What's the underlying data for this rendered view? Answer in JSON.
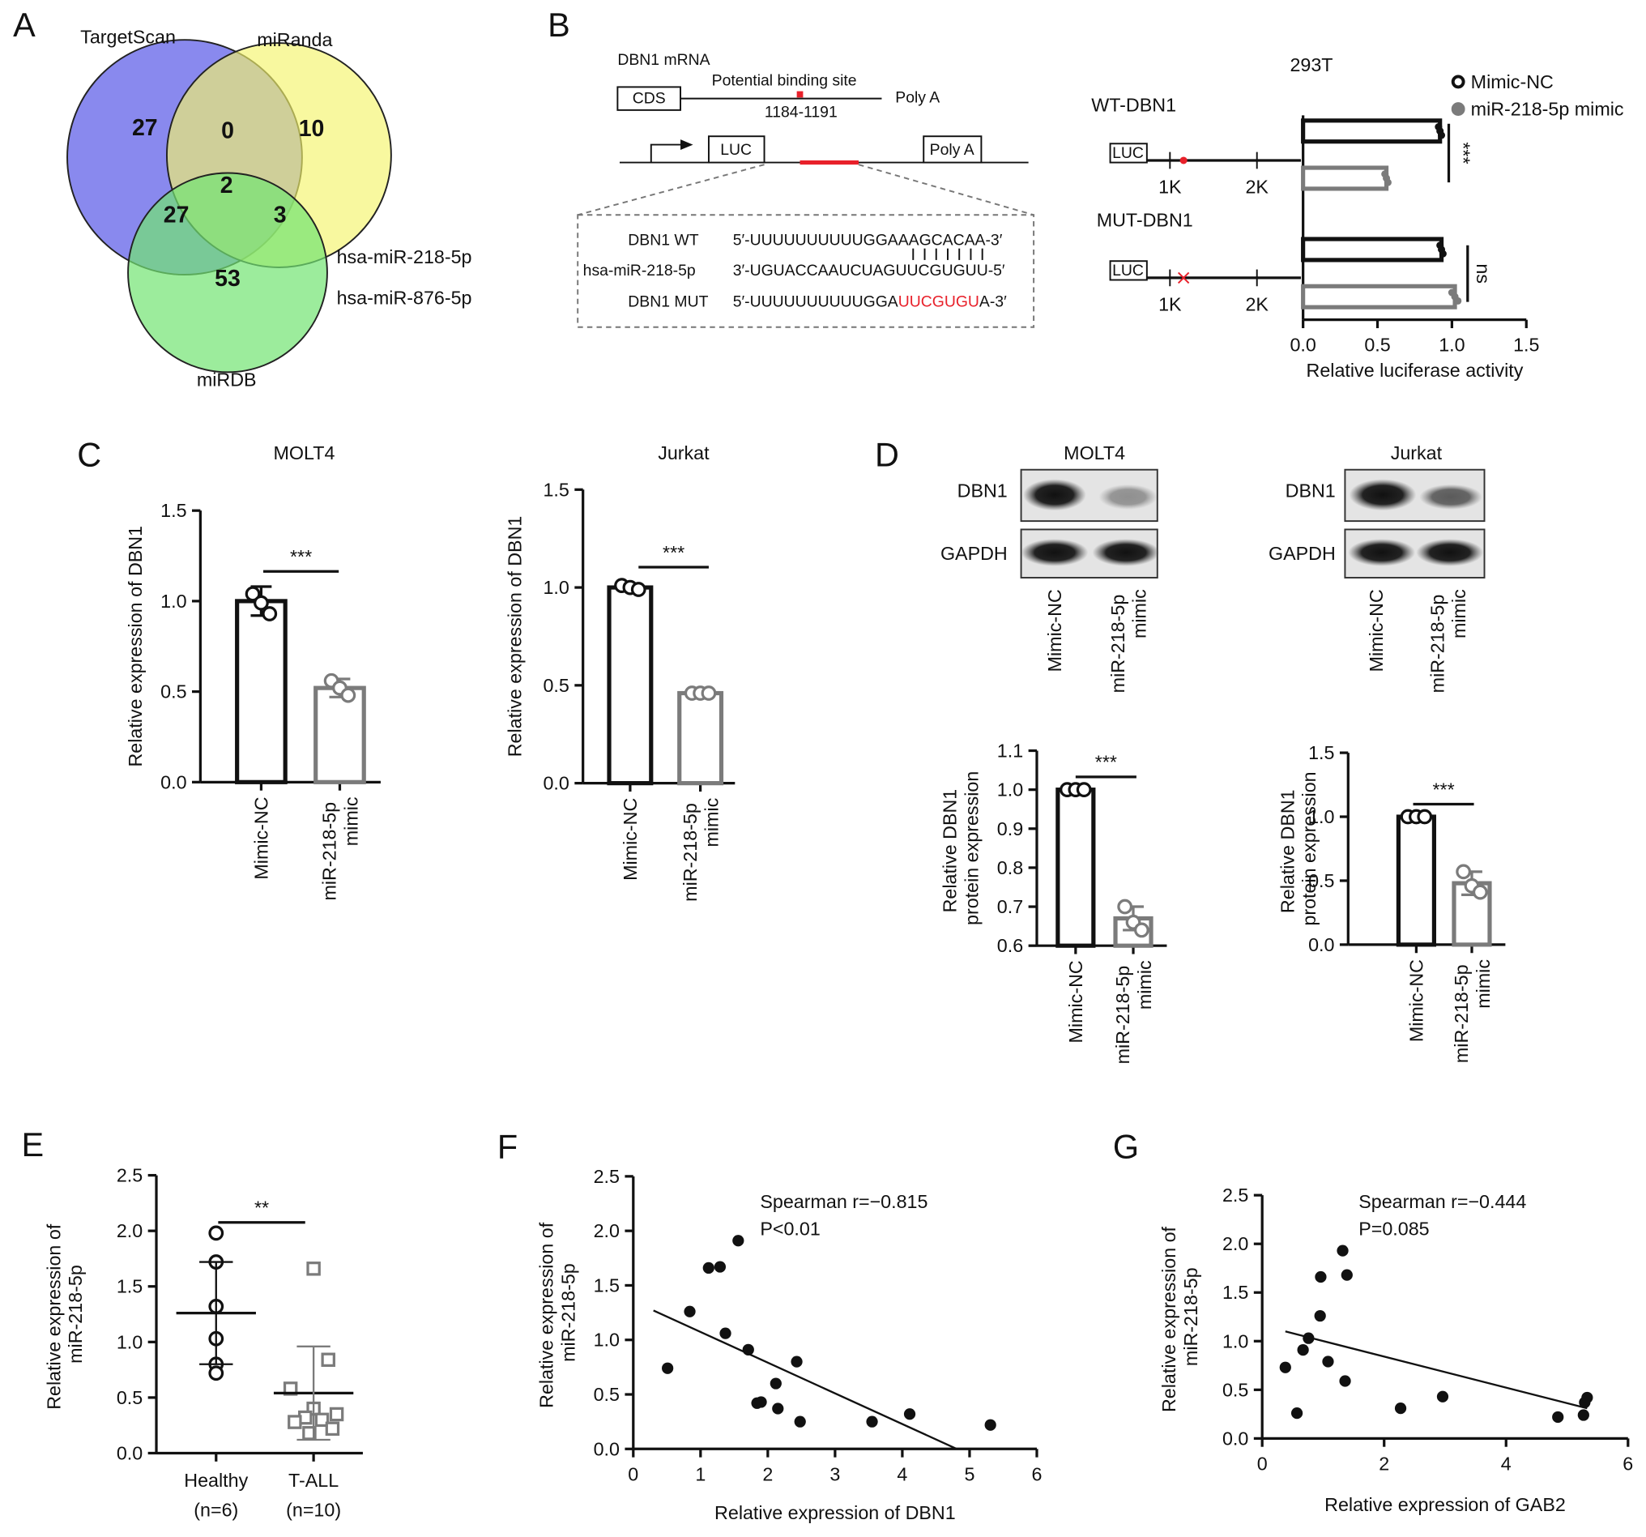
{
  "panel_labels": [
    "A",
    "B",
    "C",
    "D",
    "E",
    "F",
    "G"
  ],
  "venn": {
    "sets": [
      {
        "name": "TargetScan",
        "color": "#6b6bea"
      },
      {
        "name": "miRanda",
        "color": "#f4f46c"
      },
      {
        "name": "miRDB",
        "color": "#72e472"
      }
    ],
    "regions": [
      27,
      0,
      10,
      2,
      27,
      3,
      53
    ],
    "highlight": "hsa-miR-218-5p",
    "other": "hsa-miR-876-5p",
    "highlight_color": "#e8202a"
  },
  "construct": {
    "mrna": "DBN1 mRNA",
    "site": "Potential binding site",
    "cds": "CDS",
    "polya": "Poly A",
    "position": "1184-1191",
    "luc": "LUC",
    "scale": [
      "1K",
      "2K"
    ],
    "site_color": "#e8202a",
    "alignment": [
      {
        "name": "DBN1 WT",
        "seq": [
          "5′-UUUUUUUUUUGGAAAGCACAA-3′"
        ]
      },
      {
        "name": "hsa-miR-218-5p",
        "seq": [
          "3′-UGUACCAAUCUAGUUCGUGUU-5′"
        ]
      },
      {
        "name": "DBN1 MUT",
        "seq": [
          "5′-UUUUUUUUUUGGA",
          "UUCGUGU",
          "A-3′"
        ]
      }
    ]
  },
  "blots": {
    "proteins": [
      "DBN1",
      "GAPDH"
    ],
    "lanes": [
      "Mimic-NC",
      "miR-218-5p mimic"
    ]
  },
  "chart_data": [
    {
      "type": "hbar",
      "title": "293T",
      "categories": [
        "WT-DBN1",
        "MUT-DBN1"
      ],
      "series": [
        {
          "name": "Mimic-NC",
          "color": "#111111",
          "values": [
            0.92,
            0.93
          ],
          "points": [
            [
              0.91,
              0.92,
              0.93
            ],
            [
              0.92,
              0.93,
              0.94
            ]
          ]
        },
        {
          "name": "miR-218-5p mimic",
          "color": "#7b7b7b",
          "values": [
            0.56,
            1.02
          ],
          "points": [
            [
              0.55,
              0.56,
              0.57
            ],
            [
              1.0,
              1.02,
              1.04
            ]
          ]
        }
      ],
      "xlim": [
        0,
        1.5
      ],
      "xticks": [
        {
          "value": 0,
          "label": "0.0"
        },
        0.5,
        {
          "value": 1,
          "label": "1.0"
        },
        1.5
      ],
      "xlabel": "Relative luciferase activity",
      "significance": [
        "***",
        "ns"
      ]
    },
    {
      "type": "bar",
      "title": "MOLT4",
      "categories": [
        "Mimic-NC",
        "miR-218-5p mimic"
      ],
      "colors": [
        "#111111",
        "#7b7b7b"
      ],
      "values": [
        1.0,
        0.52
      ],
      "errors": [
        0.08,
        0.05
      ],
      "points": [
        [
          1.04,
          0.99,
          0.93
        ],
        [
          0.56,
          0.52,
          0.48
        ]
      ],
      "ylim": [
        0,
        1.5
      ],
      "yticks": [
        {
          "value": 0,
          "label": "0.0"
        },
        0.5,
        {
          "value": 1,
          "label": "1.0"
        },
        1.5
      ],
      "ylabel": "Relative expression of DBN1",
      "significance": "***"
    },
    {
      "type": "bar",
      "title": "Jurkat",
      "categories": [
        "Mimic-NC",
        "miR-218-5p mimic"
      ],
      "colors": [
        "#111111",
        "#7b7b7b"
      ],
      "values": [
        1.0,
        0.46
      ],
      "errors": [
        0.01,
        0.01
      ],
      "points": [
        [
          1.01,
          1.0,
          0.99
        ],
        [
          0.46,
          0.46,
          0.46
        ]
      ],
      "ylim": [
        0,
        1.5
      ],
      "yticks": [
        {
          "value": 0,
          "label": "0.0"
        },
        0.5,
        {
          "value": 1,
          "label": "1.0"
        },
        1.5
      ],
      "ylabel": "Relative expression of DBN1",
      "significance": "***"
    },
    {
      "type": "bar",
      "title": "MOLT4",
      "categories": [
        "Mimic-NC",
        "miR-218-5p mimic"
      ],
      "colors": [
        "#111111",
        "#7b7b7b"
      ],
      "values": [
        1.0,
        0.67
      ],
      "errors": [
        0.003,
        0.03
      ],
      "points": [
        [
          1,
          1,
          1
        ],
        [
          0.7,
          0.66,
          0.64
        ]
      ],
      "ylim": [
        0.6,
        1.1
      ],
      "yticks": [
        0.6,
        0.7,
        0.8,
        0.9,
        {
          "value": 1,
          "label": "1.0"
        },
        1.1
      ],
      "ylabel": "Relative DBN1 protein expression",
      "significance": "***"
    },
    {
      "type": "bar",
      "title": "Jurkat",
      "categories": [
        "Mimic-NC",
        "miR-218-5p mimic"
      ],
      "colors": [
        "#111111",
        "#7b7b7b"
      ],
      "values": [
        1.0,
        0.48
      ],
      "errors": [
        0.005,
        0.09
      ],
      "points": [
        [
          1,
          1,
          1
        ],
        [
          0.57,
          0.46,
          0.41
        ]
      ],
      "ylim": [
        0,
        1.5
      ],
      "yticks": [
        {
          "value": 0,
          "label": "0.0"
        },
        0.5,
        {
          "value": 1,
          "label": "1.0"
        },
        1.5
      ],
      "ylabel": "Relative DBN1 protein expression",
      "significance": "***"
    },
    {
      "type": "dot",
      "categories": [
        "Healthy",
        "T-ALL"
      ],
      "category_notes": [
        "(n=6)",
        "(n=10)"
      ],
      "colors": [
        "#111111",
        "#7b7b7b"
      ],
      "markers": [
        "circle",
        "square"
      ],
      "points": [
        [
          1.98,
          1.72,
          1.32,
          1.03,
          0.8,
          0.72
        ],
        [
          1.66,
          0.84,
          0.58,
          0.4,
          0.35,
          0.32,
          0.3,
          0.28,
          0.22,
          0.18
        ]
      ],
      "means": [
        1.26,
        0.54
      ],
      "sds": [
        0.46,
        0.42
      ],
      "ylim": [
        0,
        2.5
      ],
      "yticks": [
        {
          "value": 0,
          "label": "0.0"
        },
        0.5,
        {
          "value": 1,
          "label": "1.0"
        },
        1.5,
        {
          "value": 2,
          "label": "2.0"
        },
        2.5
      ],
      "ylabel": "Relative expression of miR-218-5p",
      "significance": "**"
    },
    {
      "type": "scatter",
      "color": "#111111",
      "x": [
        0.51,
        0.84,
        1.12,
        1.29,
        1.56,
        1.37,
        1.71,
        1.84,
        1.9,
        2.12,
        2.15,
        2.43,
        2.48,
        3.55,
        4.11,
        5.31
      ],
      "y": [
        0.74,
        1.26,
        1.66,
        1.67,
        1.91,
        1.06,
        0.91,
        0.42,
        0.43,
        0.6,
        0.37,
        0.8,
        0.25,
        0.25,
        0.32,
        0.22
      ],
      "fit": {
        "x": [
          0.3,
          4.81
        ],
        "y": [
          1.27,
          0
        ]
      },
      "annotations": [
        "Spearman r=−0.815",
        "P<0.01"
      ],
      "xlim": [
        0,
        6
      ],
      "xticks": [
        0,
        1,
        2,
        3,
        4,
        5,
        6
      ],
      "ylim": [
        0,
        2.5
      ],
      "yticks": [
        {
          "value": 0,
          "label": "0.0"
        },
        0.5,
        {
          "value": 1,
          "label": "1.0"
        },
        1.5,
        {
          "value": 2,
          "label": "2.0"
        },
        2.5
      ],
      "xlabel": "Relative expression of DBN1",
      "ylabel": "Relative expression of miR-218-5p"
    },
    {
      "type": "scatter",
      "color": "#111111",
      "x": [
        0.38,
        0.57,
        0.67,
        0.76,
        0.95,
        0.96,
        1.08,
        1.32,
        1.39,
        1.36,
        2.27,
        2.96,
        4.85,
        5.27,
        5.29,
        5.33
      ],
      "y": [
        0.73,
        0.26,
        0.91,
        1.03,
        1.26,
        1.66,
        0.79,
        1.93,
        1.68,
        0.59,
        0.31,
        0.43,
        0.22,
        0.24,
        0.37,
        0.42
      ],
      "fit": {
        "x": [
          0.38,
          5.33
        ],
        "y": [
          1.1,
          0.31
        ]
      },
      "annotations": [
        "Spearman r=−0.444",
        "P=0.085"
      ],
      "xlim": [
        0,
        6
      ],
      "xticks": [
        0,
        2,
        4,
        6
      ],
      "ylim": [
        0,
        2.5
      ],
      "yticks": [
        {
          "value": 0,
          "label": "0.0"
        },
        0.5,
        {
          "value": 1,
          "label": "1.0"
        },
        1.5,
        {
          "value": 2,
          "label": "2.0"
        },
        2.5
      ],
      "xlabel": "Relative expression of GAB2",
      "ylabel": "Relative expression of miR-218-5p"
    }
  ]
}
